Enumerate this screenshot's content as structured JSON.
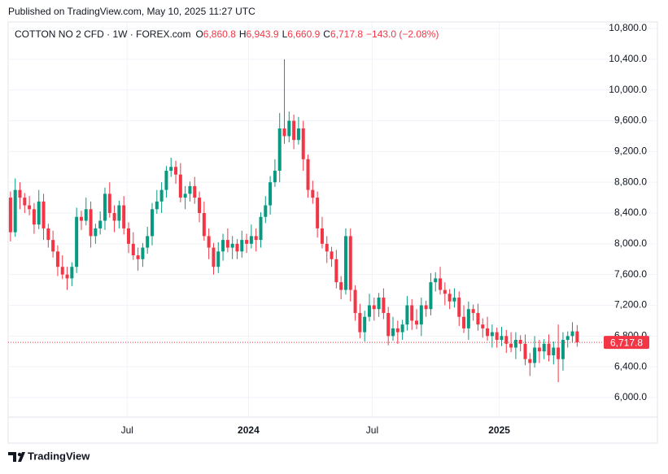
{
  "chart_data": {
    "type": "candlestick",
    "published": "Published on TradingView.com, May 10, 2025 11:27 UTC",
    "title": "COTTON NO 2 CFD · 1W · FOREX.com",
    "quote": [
      {
        "key": "O",
        "value": 6860.8,
        "label": "6,860.8"
      },
      {
        "key": "H",
        "value": 6943.9,
        "label": "6,943.9"
      },
      {
        "key": "L",
        "value": 6660.9,
        "label": "6,660.9"
      },
      {
        "key": "C",
        "value": 6717.8,
        "label": "6,717.8"
      }
    ],
    "change": "−143.0 (−2.08%)",
    "brand": "TradingView",
    "up_color": "#089981",
    "down_color": "#f23645",
    "grid": true,
    "xlim": [
      -0.5,
      137
    ],
    "xticks": [
      {
        "value": 24.7,
        "label": "Jul"
      },
      {
        "value": 50.4,
        "label": "2024"
      },
      {
        "value": 76.6,
        "label": "Jul"
      },
      {
        "value": 103.5,
        "label": "2025"
      }
    ],
    "ylim": [
      5746,
      10885
    ],
    "yticks": [
      {
        "value": 6000,
        "label": "6,000.0"
      },
      {
        "value": 6400,
        "label": "6,400.0"
      },
      {
        "value": 6800,
        "label": "6,800.0"
      },
      {
        "value": 7200,
        "label": "7,200.0"
      },
      {
        "value": 7600,
        "label": "7,600.0"
      },
      {
        "value": 8000,
        "label": "8,000.0"
      },
      {
        "value": 8400,
        "label": "8,400.0"
      },
      {
        "value": 8800,
        "label": "8,800.0"
      },
      {
        "value": 9200,
        "label": "9,200.0"
      },
      {
        "value": 9600,
        "label": "9,600.0"
      },
      {
        "value": 10000,
        "label": "10,000.0"
      },
      {
        "value": 10400,
        "label": "10,400.0"
      },
      {
        "value": 10800,
        "label": "10,800.0"
      }
    ],
    "series": {
      "open": [
        8600,
        8150,
        8700,
        8600,
        8500,
        8450,
        8250,
        8550,
        8200,
        8050,
        7900,
        7700,
        7600,
        7550,
        7700,
        8350,
        8300,
        8450,
        8100,
        8200,
        8300,
        8650,
        8400,
        8300,
        8500,
        8200,
        8000,
        7850,
        7800,
        7950,
        8100,
        8450,
        8550,
        8700,
        8950,
        9000,
        8900,
        8600,
        8650,
        8750,
        8600,
        8400,
        8100,
        7950,
        7700,
        7900,
        8050,
        7950,
        8000,
        7900,
        8050,
        8000,
        8100,
        8050,
        8350,
        8500,
        8800,
        8950,
        9500,
        9400,
        9600,
        9350,
        9500,
        9100,
        8700,
        8600,
        8200,
        8000,
        7900,
        7800,
        7500,
        7400,
        8100,
        7400,
        7100,
        6850,
        7050,
        7200,
        7150,
        7300,
        7100,
        6800,
        6900,
        6850,
        6950,
        7200,
        7000,
        6950,
        7200,
        7150,
        7500,
        7550,
        7400,
        7350,
        7250,
        7300,
        7050,
        6900,
        7150,
        7100,
        6950,
        6900,
        6800,
        6850,
        6750,
        6800,
        6700,
        6650,
        6750,
        6700,
        6500,
        6450,
        6650,
        6600,
        6700,
        6550,
        6650,
        6500,
        6750,
        6800,
        6860.8
      ],
      "high": [
        8680,
        8850,
        8800,
        8660,
        8620,
        8530,
        8700,
        8650,
        8260,
        8170,
        7980,
        7850,
        7700,
        7760,
        8470,
        8430,
        8600,
        8550,
        8260,
        8420,
        8730,
        8800,
        8500,
        8560,
        8620,
        8280,
        8150,
        7950,
        8010,
        8220,
        8530,
        8700,
        8800,
        9010,
        9120,
        9080,
        9050,
        8750,
        8810,
        8870,
        8680,
        8550,
        8200,
        8010,
        8020,
        8130,
        8200,
        8100,
        8060,
        8170,
        8130,
        8250,
        8200,
        8410,
        8620,
        8880,
        9100,
        9700,
        10400,
        9720,
        9680,
        9650,
        9600,
        9160,
        8820,
        8680,
        8350,
        8100,
        7960,
        7920,
        7580,
        8200,
        8200,
        7460,
        7220,
        7130,
        7350,
        7300,
        7360,
        7420,
        7180,
        7050,
        7000,
        7010,
        7320,
        7280,
        7150,
        7300,
        7260,
        7620,
        7630,
        7700,
        7500,
        7410,
        7420,
        7380,
        7200,
        7250,
        7210,
        7220,
        7030,
        7050,
        6950,
        6910,
        6920,
        6880,
        6850,
        6850,
        6810,
        6820,
        6580,
        6800,
        6750,
        6760,
        6820,
        6730,
        6950,
        6850,
        6860,
        6980,
        6943.9
      ],
      "low": [
        8030,
        8090,
        8450,
        8400,
        8370,
        8130,
        8190,
        8050,
        7950,
        7820,
        7580,
        7540,
        7400,
        7450,
        7620,
        8180,
        8240,
        7950,
        8000,
        8120,
        8180,
        8340,
        8150,
        8200,
        8120,
        7880,
        7790,
        7650,
        7700,
        7870,
        7980,
        8390,
        8400,
        8600,
        8870,
        8780,
        8540,
        8450,
        8550,
        8520,
        8280,
        8040,
        7800,
        7600,
        7620,
        7780,
        7890,
        7800,
        7800,
        7820,
        7880,
        7940,
        7900,
        7950,
        8270,
        8380,
        8740,
        8800,
        9300,
        9320,
        9230,
        9290,
        8950,
        8600,
        8520,
        8080,
        7940,
        7750,
        7700,
        7420,
        7280,
        7340,
        7250,
        7000,
        6770,
        6730,
        6990,
        7000,
        7050,
        7020,
        6680,
        6740,
        6700,
        6750,
        6870,
        6880,
        6890,
        6800,
        7050,
        7070,
        7380,
        7340,
        7200,
        7150,
        7170,
        6930,
        6840,
        6750,
        7000,
        6870,
        6780,
        6740,
        6650,
        6650,
        6670,
        6580,
        6590,
        6500,
        6600,
        6420,
        6280,
        6390,
        6450,
        6500,
        6470,
        6430,
        6200,
        6350,
        6650,
        6720,
        6660.9
      ],
      "close": [
        8150,
        8700,
        8600,
        8500,
        8450,
        8250,
        8550,
        8200,
        8050,
        7900,
        7700,
        7600,
        7550,
        7700,
        8350,
        8300,
        8450,
        8100,
        8200,
        8300,
        8650,
        8400,
        8300,
        8500,
        8200,
        8000,
        7850,
        7800,
        7950,
        8100,
        8450,
        8550,
        8700,
        8950,
        9000,
        8900,
        8600,
        8650,
        8750,
        8600,
        8400,
        8100,
        7950,
        7700,
        7900,
        8050,
        7950,
        8000,
        7900,
        8050,
        8000,
        8100,
        8050,
        8350,
        8500,
        8800,
        8950,
        9500,
        9400,
        9600,
        9350,
        9500,
        9100,
        8700,
        8600,
        8200,
        8000,
        7900,
        7800,
        7500,
        7400,
        8100,
        7400,
        7100,
        6850,
        7050,
        7200,
        7150,
        7300,
        7100,
        6800,
        6900,
        6850,
        6950,
        7200,
        7000,
        6950,
        7200,
        7150,
        7500,
        7550,
        7400,
        7350,
        7250,
        7300,
        7050,
        6900,
        7150,
        7100,
        6950,
        6900,
        6800,
        6850,
        6750,
        6800,
        6700,
        6650,
        6750,
        6700,
        6500,
        6450,
        6650,
        6600,
        6700,
        6550,
        6650,
        6500,
        6750,
        6800,
        6860.8,
        6717.8
      ]
    }
  }
}
